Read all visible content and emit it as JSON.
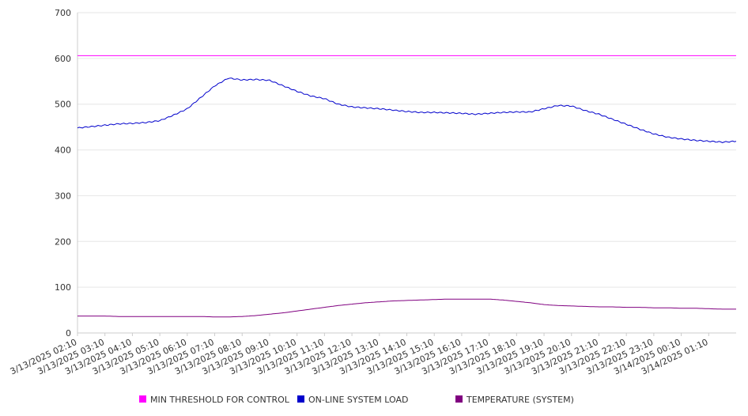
{
  "chart_data": {
    "type": "line",
    "title": "",
    "xlabel": "",
    "ylabel": "",
    "ylim": [
      0,
      700
    ],
    "y_ticks": [
      0,
      100,
      200,
      300,
      400,
      500,
      600,
      700
    ],
    "grid": true,
    "legend_position": "bottom",
    "x_tick_labels": [
      "3/13/2025 02:10",
      "3/13/2025 03:10",
      "3/13/2025 04:10",
      "3/13/2025 05:10",
      "3/13/2025 06:10",
      "3/13/2025 07:10",
      "3/13/2025 08:10",
      "3/13/2025 09:10",
      "3/13/2025 10:10",
      "3/13/2025 11:10",
      "3/13/2025 12:10",
      "3/13/2025 13:10",
      "3/13/2025 14:10",
      "3/13/2025 15:10",
      "3/13/2025 16:10",
      "3/13/2025 17:10",
      "3/13/2025 18:10",
      "3/13/2025 19:10",
      "3/13/2025 20:10",
      "3/13/2025 21:10",
      "3/13/2025 22:10",
      "3/13/2025 23:10",
      "3/14/2025 00:10",
      "3/14/2025 01:10"
    ],
    "x": [
      "3/13/2025 02:10",
      "3/13/2025 02:40",
      "3/13/2025 03:10",
      "3/13/2025 03:40",
      "3/13/2025 04:10",
      "3/13/2025 04:40",
      "3/13/2025 05:10",
      "3/13/2025 05:40",
      "3/13/2025 06:10",
      "3/13/2025 06:40",
      "3/13/2025 07:10",
      "3/13/2025 07:40",
      "3/13/2025 08:10",
      "3/13/2025 08:40",
      "3/13/2025 09:10",
      "3/13/2025 09:40",
      "3/13/2025 10:10",
      "3/13/2025 10:40",
      "3/13/2025 11:10",
      "3/13/2025 11:40",
      "3/13/2025 12:10",
      "3/13/2025 12:40",
      "3/13/2025 13:10",
      "3/13/2025 13:40",
      "3/13/2025 14:10",
      "3/13/2025 14:40",
      "3/13/2025 15:10",
      "3/13/2025 15:40",
      "3/13/2025 16:10",
      "3/13/2025 16:40",
      "3/13/2025 17:10",
      "3/13/2025 17:40",
      "3/13/2025 18:10",
      "3/13/2025 18:40",
      "3/13/2025 19:10",
      "3/13/2025 19:40",
      "3/13/2025 20:10",
      "3/13/2025 20:40",
      "3/13/2025 21:10",
      "3/13/2025 21:40",
      "3/13/2025 22:10",
      "3/13/2025 22:40",
      "3/13/2025 23:10",
      "3/13/2025 23:40",
      "3/14/2025 00:10",
      "3/14/2025 00:40",
      "3/14/2025 01:10",
      "3/14/2025 01:40",
      "3/14/2025 02:10"
    ],
    "series": [
      {
        "name": "MIN THRESHOLD FOR CONTROL",
        "color": "#ff00ff",
        "values": [
          606,
          606,
          606,
          606,
          606,
          606,
          606,
          606,
          606,
          606,
          606,
          606,
          606,
          606,
          606,
          606,
          606,
          606,
          606,
          606,
          606,
          606,
          606,
          606,
          606,
          606,
          606,
          606,
          606,
          606,
          606,
          606,
          606,
          606,
          606,
          606,
          606,
          606,
          606,
          606,
          606,
          606,
          606,
          606,
          606,
          606,
          606,
          606,
          606
        ]
      },
      {
        "name": "ON-LINE SYSTEM LOAD",
        "color": "#0000cc",
        "values": [
          448,
          451,
          454,
          457,
          458,
          460,
          464,
          476,
          490,
          515,
          540,
          557,
          553,
          554,
          552,
          540,
          528,
          518,
          512,
          500,
          494,
          492,
          490,
          487,
          484,
          482,
          482,
          481,
          480,
          478,
          480,
          482,
          483,
          483,
          490,
          497,
          496,
          486,
          478,
          467,
          456,
          445,
          435,
          428,
          424,
          421,
          419,
          417,
          419
        ]
      },
      {
        "name": "TEMPERATURE (SYSTEM)",
        "color": "#800080",
        "values": [
          37,
          37,
          37,
          36,
          36,
          36,
          36,
          36,
          36,
          36,
          35,
          35,
          36,
          38,
          41,
          44,
          48,
          52,
          56,
          60,
          63,
          66,
          68,
          70,
          71,
          72,
          73,
          74,
          74,
          74,
          74,
          72,
          69,
          66,
          62,
          60,
          59,
          58,
          57,
          57,
          56,
          56,
          55,
          55,
          54,
          54,
          53,
          52,
          52
        ]
      }
    ]
  }
}
